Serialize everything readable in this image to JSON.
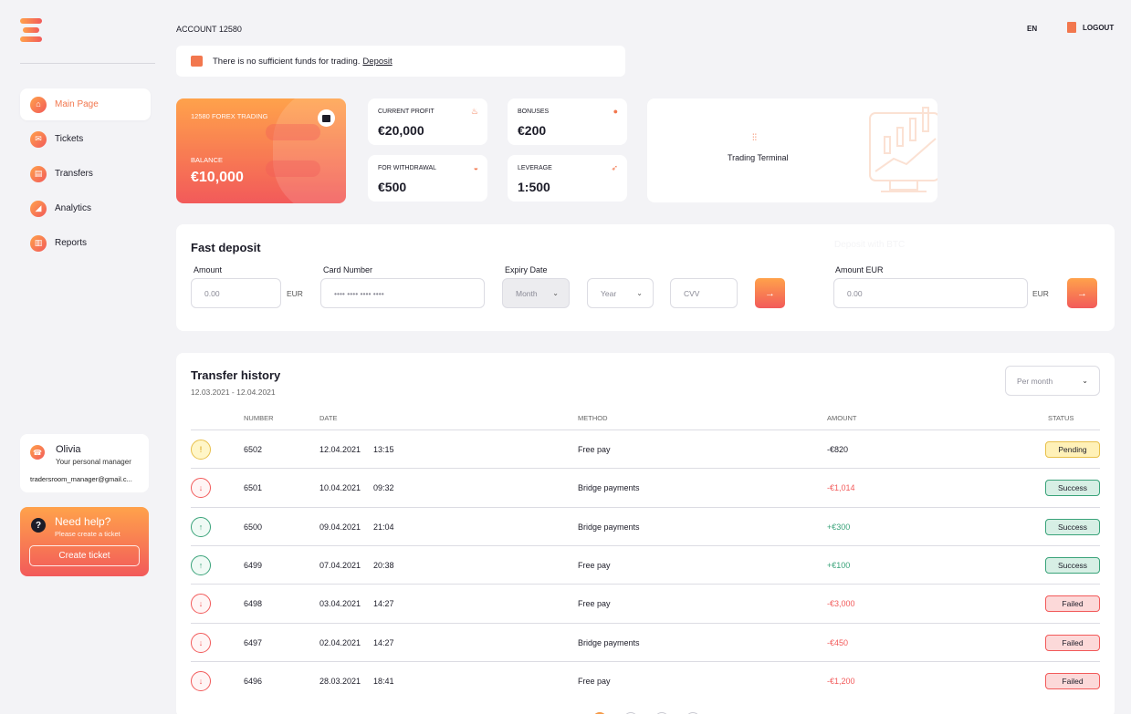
{
  "header": {
    "account": "ACCOUNT 12580",
    "language": "EN",
    "logout": "LOGOUT"
  },
  "notice": {
    "text": "There is no sufficient funds for trading.",
    "link": "Deposit"
  },
  "sidebar": {
    "items": [
      {
        "label": "Main Page",
        "icon": "home-icon",
        "glyph": "⌂"
      },
      {
        "label": "Tickets",
        "icon": "envelope-icon",
        "glyph": "✉"
      },
      {
        "label": "Transfers",
        "icon": "wallet-icon",
        "glyph": "▤"
      },
      {
        "label": "Analytics",
        "icon": "chart-icon",
        "glyph": "◢"
      },
      {
        "label": "Reports",
        "icon": "document-icon",
        "glyph": "▥"
      }
    ],
    "manager": {
      "name": "Olivia",
      "role": "Your personal manager",
      "email": "tradersroom_manager@gmail.c..."
    },
    "help": {
      "title": "Need help?",
      "subtitle": "Please create a ticket",
      "button": "Create ticket"
    }
  },
  "balance_card": {
    "title": "12580 FOREX TRADING",
    "label": "BALANCE",
    "value": "€10,000"
  },
  "stats": {
    "current_profit": {
      "label": "CURRENT PROFIT",
      "value": "€20,000"
    },
    "bonuses": {
      "label": "BONUSES",
      "value": "€200"
    },
    "withdrawal": {
      "label": "FOR WITHDRAWAL",
      "value": "€500"
    },
    "leverage": {
      "label": "LEVERAGE",
      "value": "1:500"
    }
  },
  "terminal": {
    "label": "Trading Terminal"
  },
  "deposit": {
    "title": "Fast deposit",
    "ghost": "Deposit with BTC",
    "amount_label": "Amount",
    "amount_placeholder": "0.00",
    "amount_unit": "EUR",
    "card_label": "Card Number",
    "card_placeholder": "•••• •••• •••• ••••",
    "expiry_label": "Expiry Date",
    "month": "Month",
    "year": "Year",
    "cvv": "CVV",
    "amount_eur_label": "Amount EUR",
    "amount_eur_placeholder": "0.00",
    "amount_eur_unit": "EUR",
    "arrow": "→"
  },
  "history": {
    "title": "Transfer history",
    "range": "12.03.2021 - 12.04.2021",
    "period": "Per month",
    "columns": {
      "number": "NUMBER",
      "date": "DATE",
      "method": "METHOD",
      "amount": "AMOUNT",
      "status": "STATUS"
    },
    "rows": [
      {
        "dir": "pending",
        "glyph": "!",
        "number": "6502",
        "date": "12.04.2021",
        "time": "13:15",
        "method": "Free pay",
        "amount": "-€820",
        "amount_style": "plain",
        "status": "Pending"
      },
      {
        "dir": "out",
        "glyph": "↓",
        "number": "6501",
        "date": "10.04.2021",
        "time": "09:32",
        "method": "Bridge payments",
        "amount": "-€1,014",
        "amount_style": "neg",
        "status": "Success"
      },
      {
        "dir": "in",
        "glyph": "↑",
        "number": "6500",
        "date": "09.04.2021",
        "time": "21:04",
        "method": "Bridge payments",
        "amount": "+€300",
        "amount_style": "pos",
        "status": "Success"
      },
      {
        "dir": "in",
        "glyph": "↑",
        "number": "6499",
        "date": "07.04.2021",
        "time": "20:38",
        "method": "Free pay",
        "amount": "+€100",
        "amount_style": "pos",
        "status": "Success"
      },
      {
        "dir": "out",
        "glyph": "↓",
        "number": "6498",
        "date": "03.04.2021",
        "time": "14:27",
        "method": "Free pay",
        "amount": "-€3,000",
        "amount_style": "neg",
        "status": "Failed"
      },
      {
        "dir": "out",
        "glyph": "↓",
        "number": "6497",
        "date": "02.04.2021",
        "time": "14:27",
        "method": "Bridge payments",
        "amount": "-€450",
        "amount_style": "neg",
        "status": "Failed"
      },
      {
        "dir": "out",
        "glyph": "↓",
        "number": "6496",
        "date": "28.03.2021",
        "time": "18:41",
        "method": "Free pay",
        "amount": "-€1,200",
        "amount_style": "neg",
        "status": "Failed"
      }
    ]
  },
  "colors": {
    "accent_start": "#ffa24b",
    "accent_end": "#f25a5a",
    "success": "#3aa37a",
    "pending": "#e8c04a"
  }
}
